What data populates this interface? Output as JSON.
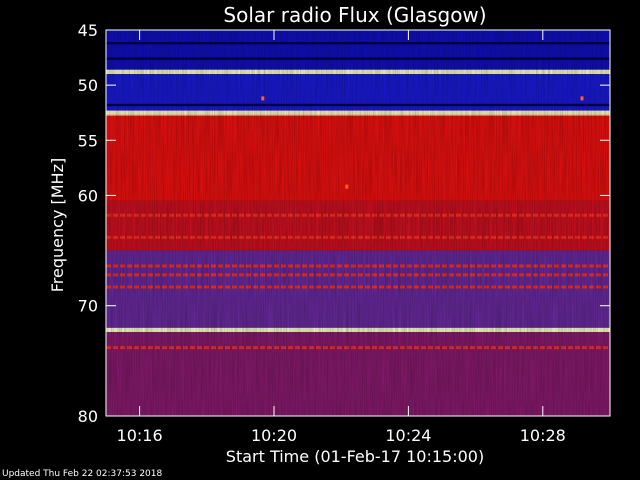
{
  "footer": {
    "updated": "Updated Thu Feb 22 02:37:53 2018"
  },
  "chart_data": {
    "type": "heatmap",
    "title": "Solar radio Flux (Glasgow)",
    "xlabel": "Start Time (01-Feb-17 10:15:00)",
    "ylabel": "Frequency [MHz]",
    "x_unit": "minutes",
    "xlim": [
      "10:15:00",
      "10:30:00"
    ],
    "ylim": [
      45,
      80
    ],
    "x_ticks": [
      "10:16",
      "10:20",
      "10:24",
      "10:28"
    ],
    "y_ticks": [
      45,
      50,
      55,
      60,
      70,
      80
    ],
    "colormap": [
      "#000040",
      "#0000a0",
      "#2020ff",
      "#6060d0",
      "#b01030",
      "#ff0000",
      "#ff8000",
      "#ffff80",
      "#ffffff"
    ],
    "bands": [
      {
        "from": 45.0,
        "to": 48.6,
        "color": "#1010c0"
      },
      {
        "from": 48.6,
        "to": 49.0,
        "color": "#ffffa0"
      },
      {
        "from": 49.0,
        "to": 52.3,
        "color": "#1a1ad8"
      },
      {
        "from": 52.3,
        "to": 52.8,
        "color": "#ff9050"
      },
      {
        "from": 52.8,
        "to": 60.5,
        "color": "#ee1010"
      },
      {
        "from": 60.5,
        "to": 65.0,
        "color": "#d01020"
      },
      {
        "from": 65.0,
        "to": 72.0,
        "color": "#6a2aa0"
      },
      {
        "from": 72.0,
        "to": 72.4,
        "color": "#ffe0a0"
      },
      {
        "from": 72.4,
        "to": 80.0,
        "color": "#8a1a70"
      }
    ],
    "bright_lines_mhz": [
      48.8,
      52.5,
      72.2
    ],
    "interference_lines_mhz": [
      61.8,
      63.8,
      66.4,
      67.2,
      68.3,
      73.8
    ],
    "dark_lines_mhz": [
      46.2,
      47.6,
      51.8
    ],
    "point_markers": [
      {
        "time": "10:19:40",
        "freq": 51.2
      },
      {
        "time": "10:22:10",
        "freq": 59.2
      },
      {
        "time": "10:29:10",
        "freq": 51.2
      }
    ]
  }
}
